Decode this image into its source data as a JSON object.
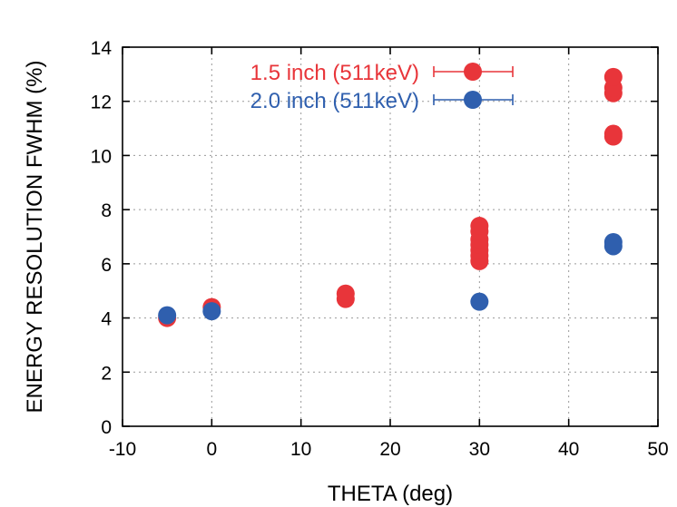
{
  "chart_data": {
    "type": "scatter",
    "xlabel": "THETA (deg)",
    "ylabel": "ENERGY RESOLUTION FWHM (%)",
    "xlim": [
      -10,
      50
    ],
    "ylim": [
      0,
      14
    ],
    "xticks": [
      -10,
      0,
      10,
      20,
      30,
      40,
      50
    ],
    "yticks": [
      0,
      2,
      4,
      6,
      8,
      10,
      12,
      14
    ],
    "grid": true,
    "legend_position": "top-left",
    "series": [
      {
        "name": "1.5 inch (511keV)",
        "color": "#e8353a",
        "points": [
          [
            -5,
            4.0
          ],
          [
            0,
            4.4
          ],
          [
            15,
            4.7
          ],
          [
            15,
            4.9
          ],
          [
            30,
            6.1
          ],
          [
            30,
            6.3
          ],
          [
            30,
            6.5
          ],
          [
            30,
            6.7
          ],
          [
            30,
            6.9
          ],
          [
            30,
            7.2
          ],
          [
            30,
            7.4
          ],
          [
            45,
            10.7
          ],
          [
            45,
            10.8
          ],
          [
            45,
            12.3
          ],
          [
            45,
            12.5
          ],
          [
            45,
            12.9
          ]
        ]
      },
      {
        "name": "2.0 inch (511keV)",
        "color": "#2f5fae",
        "points": [
          [
            -5,
            4.1
          ],
          [
            0,
            4.25
          ],
          [
            30,
            4.6
          ],
          [
            45,
            6.65
          ],
          [
            45,
            6.8
          ]
        ]
      }
    ]
  }
}
